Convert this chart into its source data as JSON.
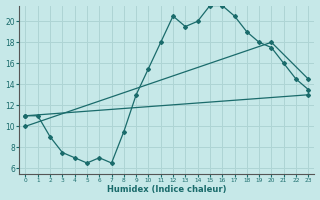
{
  "xlabel": "Humidex (Indice chaleur)",
  "ylabel": "",
  "background_color": "#c6e8e8",
  "grid_color": "#aed4d4",
  "line_color": "#1a6b6b",
  "xlim": [
    -0.5,
    23.5
  ],
  "ylim": [
    5.5,
    21.5
  ],
  "xticks": [
    0,
    1,
    2,
    3,
    4,
    5,
    6,
    7,
    8,
    9,
    10,
    11,
    12,
    13,
    14,
    15,
    16,
    17,
    18,
    19,
    20,
    21,
    22,
    23
  ],
  "yticks": [
    6,
    8,
    10,
    12,
    14,
    16,
    18,
    20
  ],
  "curve1_x": [
    0,
    1,
    2,
    3,
    4,
    5,
    6,
    7,
    8,
    9,
    10,
    11,
    12,
    13,
    14,
    15,
    16,
    17,
    18,
    19,
    20,
    21,
    22,
    23
  ],
  "curve1_y": [
    11,
    11,
    9,
    7.5,
    7,
    6.5,
    7,
    6.5,
    9.5,
    13,
    15.5,
    18,
    20.5,
    19.5,
    20,
    21.5,
    21.5,
    20.5,
    19,
    18,
    17.5,
    16,
    14.5,
    13.5
  ],
  "line2_x": [
    0,
    23
  ],
  "line2_y": [
    11,
    13
  ],
  "line3_x": [
    0,
    20,
    23
  ],
  "line3_y": [
    10,
    18,
    14.5
  ]
}
